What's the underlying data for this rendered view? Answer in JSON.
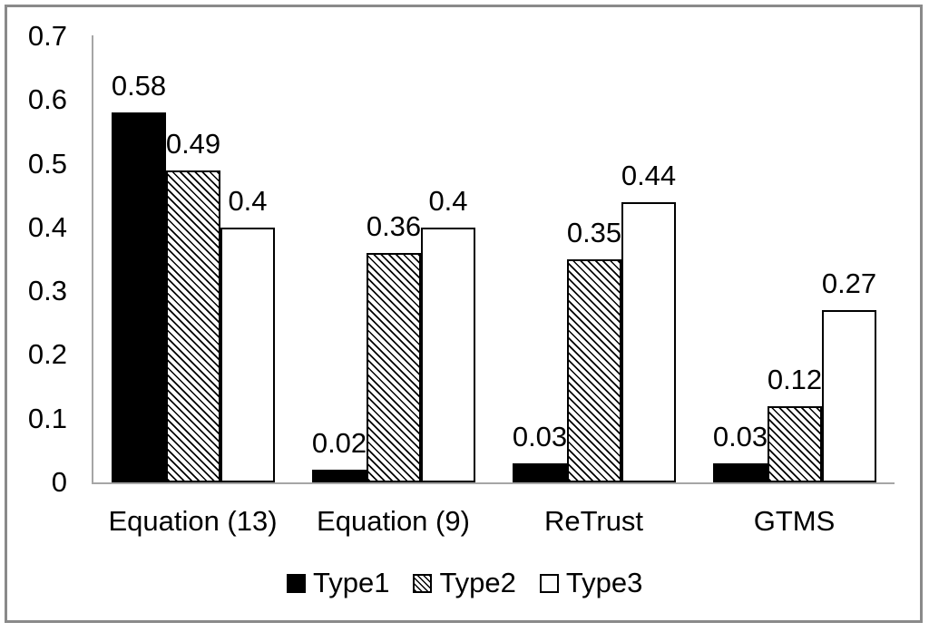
{
  "figure": {
    "background": "#ffffff",
    "border_color": "#8a8a8a",
    "axis_color": "#a6a6a6",
    "text_color": "#000000"
  },
  "chart_data": {
    "type": "bar",
    "title": "",
    "xlabel": "",
    "ylabel": "",
    "categories": [
      "Equation (13)",
      "Equation (9)",
      "ReTrust",
      "GTMS"
    ],
    "series": [
      {
        "name": "Type1",
        "fill": "solid-black",
        "color": "#000000",
        "values": [
          0.58,
          0.02,
          0.03,
          0.03
        ],
        "value_labels": [
          "0.58",
          "0.02",
          "0.03",
          "0.03"
        ]
      },
      {
        "name": "Type2",
        "fill": "diagonal-hatch",
        "color": "#000000",
        "values": [
          0.49,
          0.36,
          0.35,
          0.12
        ],
        "value_labels": [
          "0.49",
          "0.36",
          "0.35",
          "0.12"
        ]
      },
      {
        "name": "Type3",
        "fill": "white",
        "color": "#ffffff",
        "values": [
          0.4,
          0.4,
          0.44,
          0.27
        ],
        "value_labels": [
          "0.4",
          "0.4",
          "0.44",
          "0.27"
        ]
      }
    ],
    "ylim": [
      0,
      0.7
    ],
    "yticks": [
      0,
      0.1,
      0.2,
      0.3,
      0.4,
      0.5,
      0.6,
      0.7
    ],
    "ytick_labels": [
      "0",
      "0.1",
      "0.2",
      "0.3",
      "0.4",
      "0.5",
      "0.6",
      "0.7"
    ],
    "grid": false,
    "data_labels": true,
    "legend_position": "bottom-center"
  }
}
